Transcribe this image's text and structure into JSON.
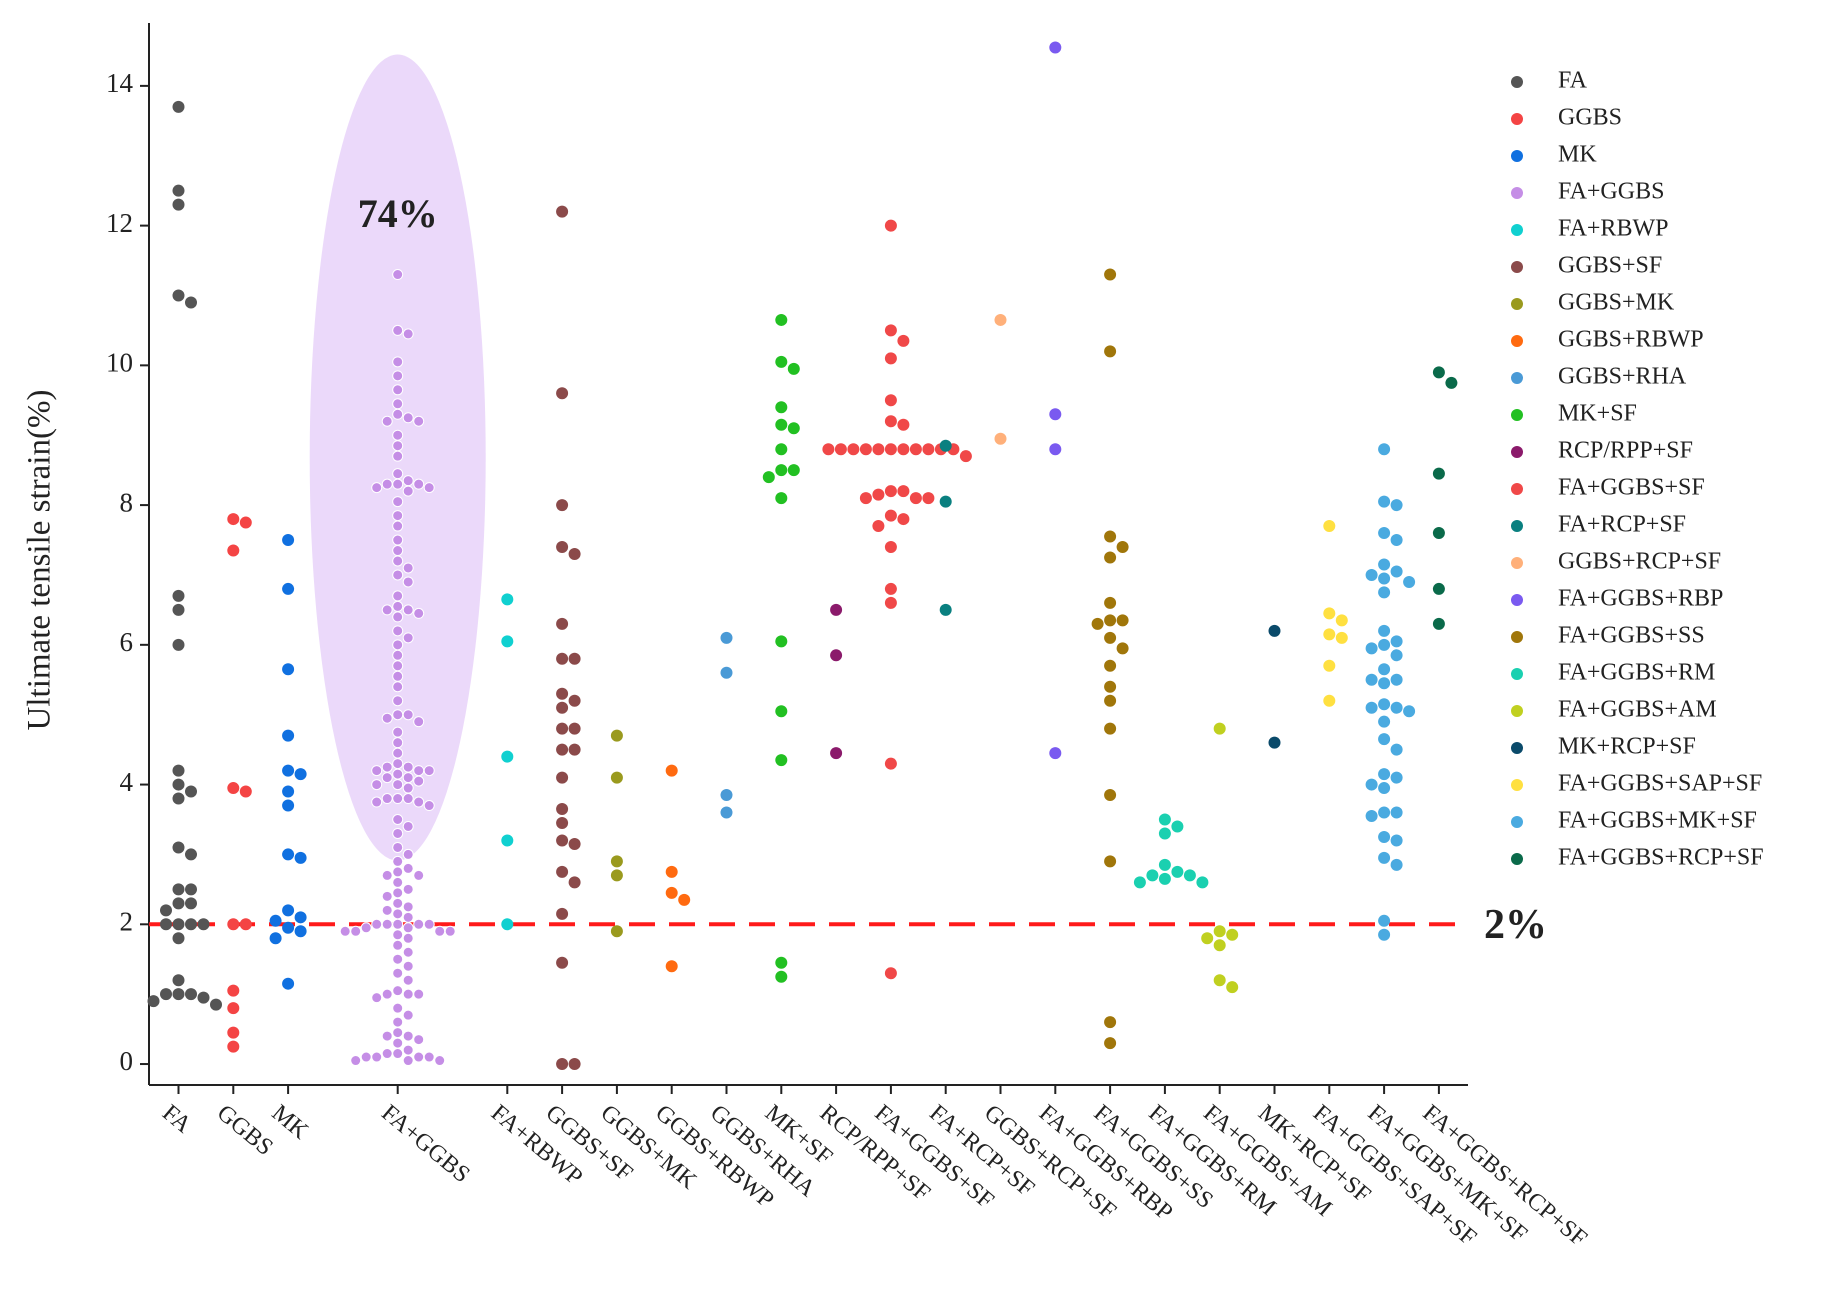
{
  "chart_data": {
    "type": "strip",
    "y_label": "Ultimate tensile strain(%)",
    "ylim": [
      -0.3,
      14.9
    ],
    "yticks": [
      0,
      2,
      4,
      6,
      8,
      10,
      12,
      14
    ],
    "highlight": {
      "category": "FA+GGBS",
      "label": "74%",
      "color": "#b070e0"
    },
    "reference_line": {
      "value": 2,
      "label": "2%",
      "color": "#ff1a1a"
    },
    "series": [
      {
        "name": "FA",
        "color": "#555555",
        "values": [
          13.7,
          12.5,
          12.3,
          11,
          10.9,
          6.7,
          6.5,
          6,
          4.2,
          4,
          3.9,
          3.8,
          3.1,
          3,
          2.5,
          2.5,
          2.3,
          2.3,
          2.2,
          2,
          2,
          2,
          2,
          1.8,
          1.2,
          1,
          1,
          1,
          0.95,
          0.9,
          0.85
        ]
      },
      {
        "name": "GGBS",
        "color": "#f44444",
        "values": [
          7.8,
          7.75,
          7.35,
          3.95,
          3.9,
          2,
          2,
          1.05,
          0.8,
          0.45,
          0.25
        ]
      },
      {
        "name": "MK",
        "color": "#1070e0",
        "values": [
          7.5,
          6.8,
          5.65,
          4.7,
          4.2,
          4.15,
          3.9,
          3.7,
          3,
          2.95,
          2.2,
          2.1,
          2.05,
          1.95,
          1.9,
          1.8,
          1.15
        ]
      },
      {
        "name": "FA+GGBS",
        "color": "#c58ee6",
        "values": [
          11.3,
          10.5,
          10.45,
          10.05,
          9.85,
          9.65,
          9.45,
          9.3,
          9.25,
          9.2,
          9.2,
          9.0,
          8.85,
          8.7,
          8.45,
          8.35,
          8.3,
          8.3,
          8.3,
          8.25,
          8.25,
          8.2,
          8.05,
          7.85,
          7.7,
          7.5,
          7.35,
          7.2,
          7.1,
          7.0,
          6.9,
          6.7,
          6.55,
          6.5,
          6.5,
          6.45,
          6.4,
          6.2,
          6.1,
          6.0,
          5.85,
          5.7,
          5.55,
          5.4,
          5.2,
          5.0,
          5.0,
          4.95,
          4.9,
          4.75,
          4.6,
          4.45,
          4.3,
          4.25,
          4.25,
          4.2,
          4.2,
          4.2,
          4.15,
          4.1,
          4.1,
          4.05,
          4.0,
          4.0,
          3.95,
          3.8,
          3.8,
          3.8,
          3.75,
          3.75,
          3.7,
          3.5,
          3.4,
          3.3,
          3.1,
          3.0,
          2.9,
          2.8,
          2.75,
          2.7,
          2.7,
          2.6,
          2.5,
          2.45,
          2.4,
          2.3,
          2.25,
          2.2,
          2.15,
          2.1,
          2.0,
          2.0,
          2.0,
          2.0,
          2.0,
          1.95,
          1.95,
          1.9,
          1.9,
          1.9,
          1.9,
          1.85,
          1.8,
          1.7,
          1.6,
          1.5,
          1.4,
          1.3,
          1.2,
          1.05,
          1.0,
          1.0,
          1.0,
          0.95,
          0.8,
          0.7,
          0.6,
          0.45,
          0.4,
          0.4,
          0.35,
          0.3,
          0.2,
          0.15,
          0.15,
          0.1,
          0.1,
          0.1,
          0.1,
          0.05,
          0.05,
          0.05
        ]
      },
      {
        "name": "FA+RBWP",
        "color": "#10d0d0",
        "values": [
          6.65,
          6.05,
          4.4,
          3.2,
          2.0
        ]
      },
      {
        "name": "GGBS+SF",
        "color": "#8b4a4a",
        "values": [
          12.2,
          9.6,
          8.0,
          7.4,
          7.3,
          6.3,
          5.8,
          5.8,
          5.3,
          5.2,
          5.1,
          4.8,
          4.8,
          4.5,
          4.5,
          4.1,
          3.65,
          3.45,
          3.2,
          3.15,
          2.75,
          2.6,
          2.15,
          1.45,
          0,
          0
        ]
      },
      {
        "name": "GGBS+MK",
        "color": "#9a9a1e",
        "values": [
          4.7,
          4.1,
          2.9,
          2.7,
          1.9
        ]
      },
      {
        "name": "GGBS+RBWP",
        "color": "#ff6a10",
        "values": [
          4.2,
          2.75,
          2.45,
          2.35,
          1.4
        ]
      },
      {
        "name": "GGBS+RHA",
        "color": "#4a9ad6",
        "values": [
          6.1,
          5.6,
          3.85,
          3.6
        ]
      },
      {
        "name": "MK+SF",
        "color": "#22c022",
        "values": [
          10.65,
          10.05,
          9.95,
          9.4,
          9.15,
          9.1,
          8.8,
          8.5,
          8.5,
          8.4,
          8.1,
          6.05,
          5.05,
          4.35,
          1.45,
          1.25
        ]
      },
      {
        "name": "RCP/RPP+SF",
        "color": "#8b1a6b",
        "values": [
          6.5,
          5.85,
          4.45
        ]
      },
      {
        "name": "FA+GGBS+SF",
        "color": "#f04848",
        "values": [
          12.0,
          10.5,
          10.35,
          10.1,
          9.5,
          9.2,
          9.15,
          8.8,
          8.8,
          8.8,
          8.8,
          8.8,
          8.8,
          8.8,
          8.8,
          8.8,
          8.8,
          8.8,
          8.7,
          8.2,
          8.2,
          8.15,
          8.1,
          8.1,
          8.1,
          7.85,
          7.8,
          7.7,
          7.4,
          6.8,
          6.6,
          4.3,
          1.3
        ]
      },
      {
        "name": "FA+RCP+SF",
        "color": "#0a8080",
        "values": [
          8.85,
          8.05,
          6.5
        ]
      },
      {
        "name": "GGBS+RCP+SF",
        "color": "#ffb07a",
        "values": [
          10.65,
          8.95
        ]
      },
      {
        "name": "FA+GGBS+RBP",
        "color": "#7a5af0",
        "values": [
          14.55,
          9.3,
          8.8,
          4.45
        ]
      },
      {
        "name": "FA+GGBS+SS",
        "color": "#a0760a",
        "values": [
          11.3,
          10.2,
          7.55,
          7.4,
          7.25,
          6.6,
          6.35,
          6.35,
          6.3,
          6.1,
          5.95,
          5.7,
          5.4,
          5.2,
          4.8,
          3.85,
          2.9,
          0.6,
          0.3
        ]
      },
      {
        "name": "FA+GGBS+RM",
        "color": "#1ad0b0",
        "values": [
          3.5,
          3.4,
          3.3,
          2.85,
          2.75,
          2.7,
          2.7,
          2.65,
          2.6,
          2.6
        ]
      },
      {
        "name": "FA+GGBS+AM",
        "color": "#c0d020",
        "values": [
          4.8,
          1.9,
          1.85,
          1.8,
          1.7,
          1.2,
          1.1
        ]
      },
      {
        "name": "MK+RCP+SF",
        "color": "#0a4a6a",
        "values": [
          6.2,
          4.6
        ]
      },
      {
        "name": "FA+GGBS+SAP+SF",
        "color": "#ffe040",
        "values": [
          7.7,
          6.45,
          6.35,
          6.15,
          6.1,
          5.7,
          5.2
        ]
      },
      {
        "name": "FA+GGBS+MK+SF",
        "color": "#4aaae0",
        "values": [
          8.8,
          8.05,
          8.0,
          7.6,
          7.5,
          7.15,
          7.05,
          7.0,
          6.95,
          6.9,
          6.75,
          6.2,
          6.05,
          6.0,
          5.95,
          5.85,
          5.65,
          5.5,
          5.5,
          5.45,
          5.15,
          5.1,
          5.1,
          5.05,
          4.9,
          4.65,
          4.5,
          4.15,
          4.1,
          4.0,
          3.95,
          3.6,
          3.6,
          3.55,
          3.25,
          3.2,
          2.95,
          2.85,
          2.05,
          1.85
        ]
      },
      {
        "name": "FA+GGBS+RCP+SF",
        "color": "#0a6a4a",
        "values": [
          9.9,
          9.75,
          8.45,
          7.6,
          6.8,
          6.3
        ]
      }
    ]
  }
}
